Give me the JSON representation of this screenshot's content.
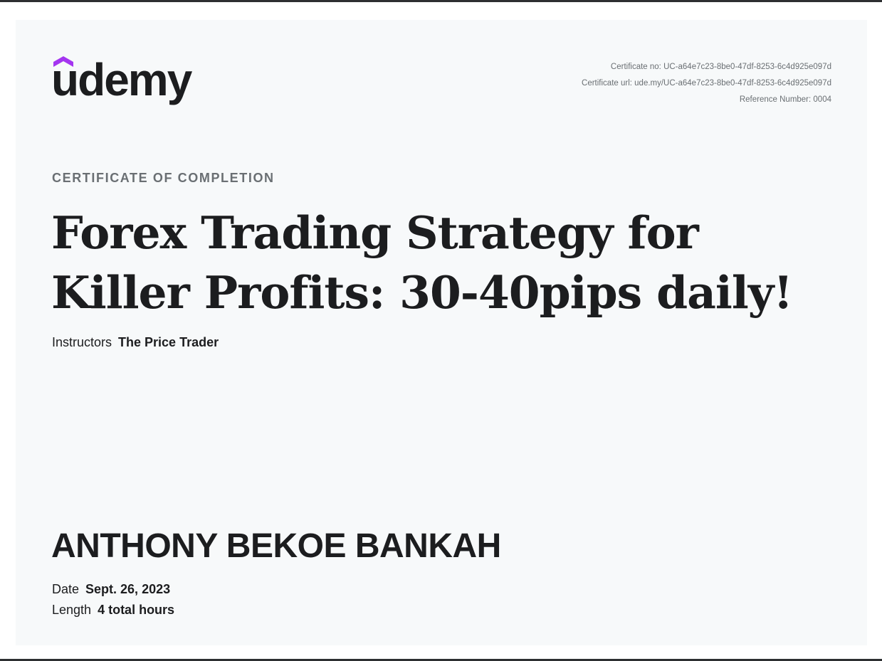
{
  "brand": {
    "logo_text": "udemy",
    "accent_color": "#a435f0",
    "logo_icon": "udemy-hat-icon"
  },
  "certificate": {
    "number": "Certificate no: UC-a64e7c23-8be0-47df-8253-6c4d925e097d",
    "url": "Certificate url: ude.my/UC-a64e7c23-8be0-47df-8253-6c4d925e097d",
    "reference": "Reference Number: 0004",
    "kicker": "CERTIFICATE OF COMPLETION",
    "course_title": "Forex Trading Strategy for Killer Profits: 30-40pips daily!",
    "instructors_label": "Instructors",
    "instructors_value": "The Price Trader",
    "recipient": "ANTHONY BEKOE BANKAH",
    "date_label": "Date",
    "date_value": "Sept. 26, 2023",
    "length_label": "Length",
    "length_value": "4 total hours"
  }
}
